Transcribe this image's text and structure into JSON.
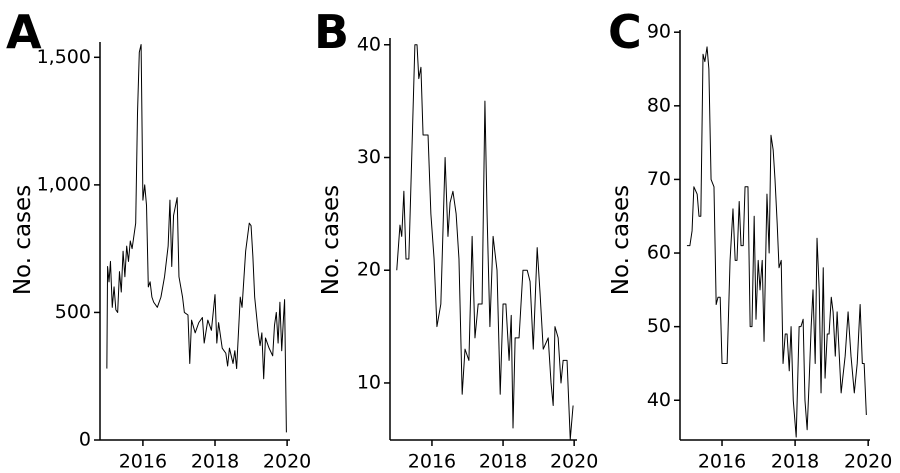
{
  "chart_data": [
    {
      "type": "line",
      "label": "A",
      "y_label": "No. cases",
      "x": [
        2015.0,
        2015.02,
        2015.06,
        2015.1,
        2015.15,
        2015.2,
        2015.25,
        2015.3,
        2015.35,
        2015.4,
        2015.45,
        2015.5,
        2015.55,
        2015.6,
        2015.65,
        2015.7,
        2015.8,
        2015.85,
        2015.9,
        2015.95,
        2016.0,
        2016.05,
        2016.1,
        2016.15,
        2016.2,
        2016.25,
        2016.3,
        2016.4,
        2016.5,
        2016.6,
        2016.7,
        2016.75,
        2016.8,
        2016.85,
        2016.95,
        2017.0,
        2017.1,
        2017.15,
        2017.25,
        2017.3,
        2017.35,
        2017.45,
        2017.55,
        2017.65,
        2017.7,
        2017.8,
        2017.9,
        2018.0,
        2018.05,
        2018.1,
        2018.2,
        2018.3,
        2018.35,
        2018.4,
        2018.5,
        2018.55,
        2018.6,
        2018.65,
        2018.7,
        2018.75,
        2018.85,
        2018.95,
        2019.0,
        2019.05,
        2019.1,
        2019.2,
        2019.25,
        2019.3,
        2019.35,
        2019.4,
        2019.5,
        2019.6,
        2019.65,
        2019.7,
        2019.75,
        2019.8,
        2019.85,
        2019.9,
        2019.93,
        2019.98
      ],
      "values": [
        280,
        680,
        620,
        700,
        520,
        600,
        510,
        500,
        660,
        580,
        740,
        640,
        760,
        700,
        780,
        750,
        850,
        1280,
        1520,
        1550,
        940,
        1000,
        920,
        600,
        620,
        560,
        540,
        520,
        560,
        640,
        760,
        940,
        680,
        880,
        950,
        640,
        560,
        500,
        490,
        300,
        470,
        420,
        460,
        480,
        380,
        470,
        430,
        570,
        380,
        460,
        360,
        340,
        290,
        360,
        300,
        350,
        280,
        420,
        560,
        520,
        740,
        850,
        840,
        720,
        560,
        420,
        370,
        420,
        240,
        400,
        360,
        330,
        450,
        500,
        380,
        540,
        350,
        480,
        550,
        30
      ],
      "color": "#000000",
      "xlim": [
        2014.81,
        2020.08
      ],
      "xticks": [
        2016,
        2018,
        2020
      ],
      "ylim": [
        0,
        1560
      ],
      "yticks": [
        0,
        500,
        {
          "value": 1000,
          "label": "1,000"
        },
        {
          "value": 1500,
          "label": "1,500"
        }
      ]
    },
    {
      "type": "line",
      "label": "B",
      "y_label": "No. cases",
      "x": [
        2015.01,
        2015.1,
        2015.15,
        2015.21,
        2015.27,
        2015.35,
        2015.44,
        2015.52,
        2015.58,
        2015.63,
        2015.69,
        2015.75,
        2015.89,
        2015.97,
        2016.06,
        2016.14,
        2016.25,
        2016.37,
        2016.45,
        2016.51,
        2016.59,
        2016.68,
        2016.76,
        2016.85,
        2016.93,
        2017.04,
        2017.13,
        2017.21,
        2017.3,
        2017.41,
        2017.49,
        2017.55,
        2017.63,
        2017.72,
        2017.83,
        2017.92,
        2018.0,
        2018.08,
        2018.17,
        2018.23,
        2018.28,
        2018.34,
        2018.45,
        2018.56,
        2018.68,
        2018.76,
        2018.85,
        2018.96,
        2019.04,
        2019.13,
        2019.27,
        2019.35,
        2019.41,
        2019.46,
        2019.55,
        2019.63,
        2019.69,
        2019.8,
        2019.89,
        2019.97
      ],
      "values": [
        20,
        24,
        23,
        27,
        21,
        21,
        31,
        40,
        40,
        37,
        38,
        32,
        32,
        25,
        21,
        15,
        17,
        30,
        23,
        26,
        27,
        25,
        21,
        9,
        13,
        12,
        23,
        14,
        17,
        17,
        35,
        25,
        15,
        23,
        20,
        9,
        17,
        17,
        12,
        16,
        6,
        14,
        14,
        20,
        20,
        19,
        13,
        22,
        18,
        13,
        14,
        10,
        8,
        15,
        14,
        10,
        12,
        12,
        5,
        8
      ],
      "color": "#000000",
      "xlim": [
        2014.82,
        2020.08
      ],
      "xticks": [
        2016,
        2018,
        2020
      ],
      "ylim": [
        4.94,
        40.6
      ],
      "yticks": [
        10,
        20,
        30,
        40
      ]
    },
    {
      "type": "line",
      "label": "C",
      "y_label": "No. cases",
      "x": [
        2015.04,
        2015.12,
        2015.18,
        2015.23,
        2015.32,
        2015.37,
        2015.42,
        2015.48,
        2015.53,
        2015.59,
        2015.64,
        2015.7,
        2015.78,
        2015.84,
        2015.89,
        2015.95,
        2016.0,
        2016.14,
        2016.22,
        2016.3,
        2016.36,
        2016.41,
        2016.47,
        2016.52,
        2016.58,
        2016.63,
        2016.71,
        2016.77,
        2016.82,
        2016.88,
        2016.93,
        2016.99,
        2017.04,
        2017.1,
        2017.15,
        2017.23,
        2017.29,
        2017.34,
        2017.4,
        2017.45,
        2017.51,
        2017.56,
        2017.62,
        2017.67,
        2017.73,
        2017.78,
        2017.84,
        2017.89,
        2017.95,
        2018.03,
        2018.11,
        2018.16,
        2018.22,
        2018.27,
        2018.33,
        2018.38,
        2018.44,
        2018.49,
        2018.55,
        2018.6,
        2018.66,
        2018.71,
        2018.77,
        2018.82,
        2018.88,
        2018.93,
        2018.99,
        2019.04,
        2019.1,
        2019.15,
        2019.21,
        2019.26,
        2019.37,
        2019.45,
        2019.53,
        2019.62,
        2019.7,
        2019.78,
        2019.84,
        2019.89,
        2019.95
      ],
      "values": [
        61,
        61,
        63,
        69,
        68,
        65,
        65,
        87,
        86,
        88,
        85,
        70,
        69,
        53,
        54,
        54,
        45,
        45,
        59,
        66,
        59,
        59,
        67,
        61,
        61,
        69,
        69,
        50,
        50,
        65,
        51,
        59,
        55,
        59,
        48,
        68,
        60,
        76,
        74,
        70,
        64,
        58,
        59,
        45,
        49,
        49,
        44,
        50,
        40,
        35,
        50,
        50,
        51,
        40,
        36,
        42,
        50,
        55,
        45,
        62,
        55,
        41,
        58,
        43,
        49,
        49,
        54,
        52,
        46,
        52,
        46,
        41,
        46,
        52,
        46,
        41,
        45,
        53,
        45,
        45,
        38
      ],
      "color": "#000000",
      "xlim": [
        2014.85,
        2020.05
      ],
      "xticks": [
        2016,
        2018,
        2020
      ],
      "ylim": [
        34.6,
        90.3
      ],
      "yticks": [
        40,
        50,
        60,
        70,
        80,
        90
      ]
    }
  ]
}
